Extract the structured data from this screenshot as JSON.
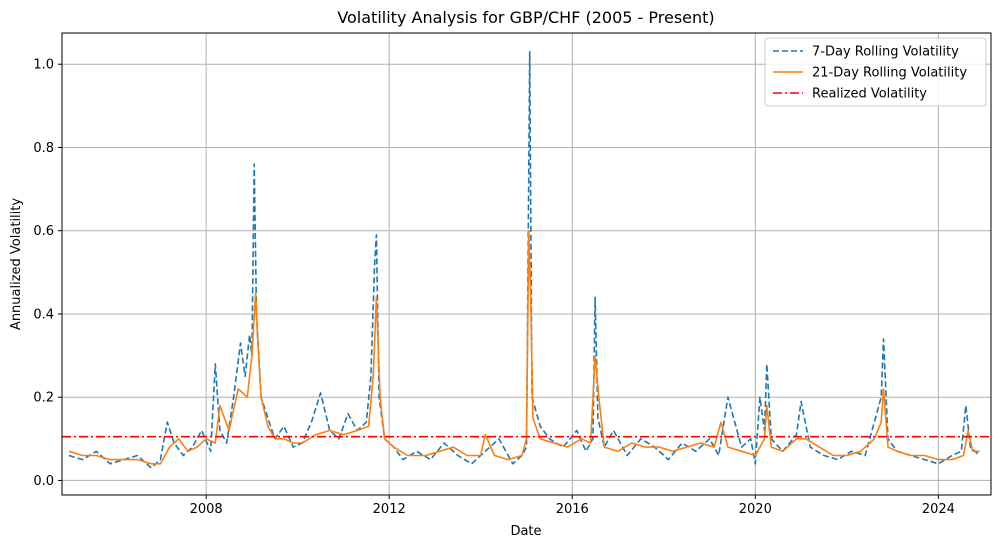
{
  "chart_data": {
    "type": "line",
    "title": "Volatility Analysis for GBP/CHF (2005 - Present)",
    "xlabel": "Date",
    "ylabel": "Annualized Volatility",
    "xlim": [
      2004.85,
      2025.15
    ],
    "ylim": [
      -0.035,
      1.075
    ],
    "xticks": [
      2008,
      2012,
      2016,
      2020,
      2024
    ],
    "xtick_labels": [
      "2008",
      "2012",
      "2016",
      "2020",
      "2024"
    ],
    "yticks": [
      0.0,
      0.2,
      0.4,
      0.6,
      0.8,
      1.0
    ],
    "ytick_labels": [
      "0.0",
      "0.2",
      "0.4",
      "0.6",
      "0.8",
      "1.0"
    ],
    "grid": true,
    "legend_position": "top-right",
    "series": [
      {
        "name": "7-Day Rolling Volatility",
        "color": "#1f77b4",
        "style": "dashed",
        "x": [
          2005.0,
          2005.3,
          2005.6,
          2005.9,
          2006.2,
          2006.5,
          2006.8,
          2007.0,
          2007.15,
          2007.3,
          2007.5,
          2007.7,
          2007.9,
          2008.1,
          2008.2,
          2008.3,
          2008.45,
          2008.6,
          2008.75,
          2008.85,
          2008.95,
          2009.0,
          2009.05,
          2009.1,
          2009.2,
          2009.35,
          2009.5,
          2009.7,
          2009.9,
          2010.1,
          2010.3,
          2010.5,
          2010.7,
          2010.9,
          2011.1,
          2011.3,
          2011.5,
          2011.6,
          2011.68,
          2011.72,
          2011.78,
          2011.9,
          2012.1,
          2012.3,
          2012.6,
          2012.9,
          2013.2,
          2013.5,
          2013.8,
          2014.1,
          2014.4,
          2014.7,
          2014.9,
          2015.0,
          2015.04,
          2015.07,
          2015.12,
          2015.3,
          2015.5,
          2015.8,
          2016.1,
          2016.3,
          2016.45,
          2016.5,
          2016.56,
          2016.7,
          2016.9,
          2017.2,
          2017.5,
          2017.8,
          2018.1,
          2018.4,
          2018.7,
          2019.0,
          2019.2,
          2019.4,
          2019.7,
          2019.9,
          2020.0,
          2020.1,
          2020.2,
          2020.25,
          2020.35,
          2020.6,
          2020.9,
          2021.0,
          2021.2,
          2021.5,
          2021.8,
          2022.1,
          2022.4,
          2022.6,
          2022.75,
          2022.8,
          2022.9,
          2023.1,
          2023.4,
          2023.7,
          2024.0,
          2024.3,
          2024.5,
          2024.6,
          2024.7,
          2024.9
        ],
        "y": [
          0.06,
          0.05,
          0.07,
          0.04,
          0.05,
          0.06,
          0.03,
          0.05,
          0.14,
          0.09,
          0.06,
          0.08,
          0.12,
          0.07,
          0.28,
          0.12,
          0.09,
          0.2,
          0.33,
          0.25,
          0.35,
          0.3,
          0.76,
          0.4,
          0.2,
          0.15,
          0.1,
          0.13,
          0.08,
          0.09,
          0.14,
          0.21,
          0.12,
          0.1,
          0.16,
          0.12,
          0.14,
          0.25,
          0.52,
          0.59,
          0.2,
          0.1,
          0.08,
          0.05,
          0.07,
          0.05,
          0.09,
          0.06,
          0.04,
          0.07,
          0.1,
          0.04,
          0.06,
          0.08,
          0.6,
          1.03,
          0.2,
          0.13,
          0.1,
          0.08,
          0.12,
          0.07,
          0.1,
          0.44,
          0.15,
          0.08,
          0.12,
          0.06,
          0.1,
          0.08,
          0.05,
          0.09,
          0.07,
          0.1,
          0.06,
          0.2,
          0.08,
          0.1,
          0.04,
          0.2,
          0.12,
          0.28,
          0.1,
          0.07,
          0.11,
          0.19,
          0.08,
          0.06,
          0.05,
          0.07,
          0.06,
          0.14,
          0.2,
          0.34,
          0.1,
          0.07,
          0.06,
          0.05,
          0.04,
          0.06,
          0.07,
          0.18,
          0.08,
          0.06
        ]
      },
      {
        "name": "21-Day Rolling Volatility",
        "color": "#ff7f0e",
        "style": "solid",
        "x": [
          2005.0,
          2005.3,
          2005.6,
          2005.9,
          2006.2,
          2006.5,
          2006.8,
          2007.0,
          2007.2,
          2007.4,
          2007.6,
          2007.8,
          2008.0,
          2008.2,
          2008.3,
          2008.5,
          2008.7,
          2008.9,
          2009.0,
          2009.08,
          2009.12,
          2009.2,
          2009.35,
          2009.5,
          2009.7,
          2009.9,
          2010.1,
          2010.4,
          2010.7,
          2011.0,
          2011.3,
          2011.55,
          2011.65,
          2011.72,
          2011.8,
          2011.9,
          2012.1,
          2012.4,
          2012.8,
          2013.1,
          2013.4,
          2013.7,
          2014.0,
          2014.1,
          2014.3,
          2014.6,
          2014.9,
          2015.0,
          2015.05,
          2015.09,
          2015.14,
          2015.3,
          2015.6,
          2015.9,
          2016.2,
          2016.4,
          2016.5,
          2016.58,
          2016.7,
          2017.0,
          2017.3,
          2017.6,
          2017.9,
          2018.2,
          2018.5,
          2018.8,
          2019.1,
          2019.25,
          2019.4,
          2019.7,
          2020.0,
          2020.2,
          2020.25,
          2020.35,
          2020.6,
          2020.9,
          2021.1,
          2021.4,
          2021.7,
          2022.0,
          2022.3,
          2022.6,
          2022.75,
          2022.8,
          2022.9,
          2023.1,
          2023.4,
          2023.7,
          2024.0,
          2024.3,
          2024.55,
          2024.65,
          2024.75,
          2024.9
        ],
        "y": [
          0.07,
          0.06,
          0.06,
          0.05,
          0.05,
          0.05,
          0.04,
          0.04,
          0.08,
          0.1,
          0.07,
          0.08,
          0.1,
          0.09,
          0.18,
          0.12,
          0.22,
          0.2,
          0.3,
          0.45,
          0.35,
          0.2,
          0.13,
          0.1,
          0.1,
          0.09,
          0.09,
          0.11,
          0.12,
          0.11,
          0.12,
          0.13,
          0.25,
          0.44,
          0.2,
          0.1,
          0.08,
          0.06,
          0.06,
          0.07,
          0.08,
          0.06,
          0.06,
          0.11,
          0.06,
          0.05,
          0.06,
          0.1,
          0.6,
          0.45,
          0.15,
          0.1,
          0.09,
          0.08,
          0.1,
          0.09,
          0.3,
          0.2,
          0.08,
          0.07,
          0.09,
          0.08,
          0.08,
          0.07,
          0.08,
          0.09,
          0.08,
          0.14,
          0.08,
          0.07,
          0.06,
          0.1,
          0.18,
          0.08,
          0.07,
          0.1,
          0.1,
          0.08,
          0.06,
          0.06,
          0.07,
          0.1,
          0.14,
          0.22,
          0.08,
          0.07,
          0.06,
          0.06,
          0.05,
          0.05,
          0.06,
          0.12,
          0.07,
          0.07
        ]
      },
      {
        "name": "Realized Volatility",
        "color": "#ff0000",
        "style": "dashdot",
        "value": 0.105
      }
    ]
  }
}
